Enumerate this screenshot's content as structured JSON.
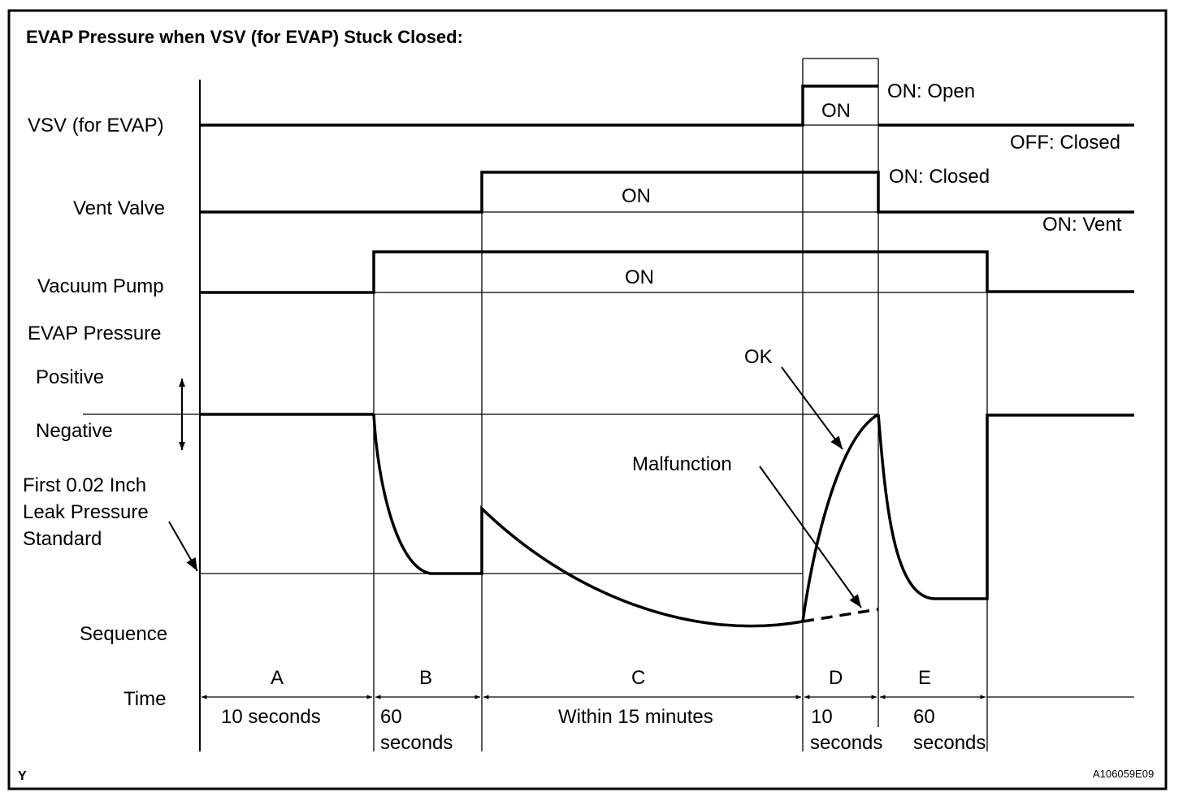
{
  "title": "EVAP Pressure when VSV (for EVAP) Stuck Closed:",
  "rows": {
    "vsv": "VSV (for EVAP)",
    "vent": "Vent Valve",
    "pump": "Vacuum Pump",
    "evap": "EVAP Pressure",
    "positive": "Positive",
    "negative": "Negative",
    "leak1": "First 0.02 Inch",
    "leak2": "Leak Pressure",
    "leak3": "Standard",
    "sequence": "Sequence",
    "time": "Time"
  },
  "states": {
    "vsv_on": "ON",
    "vsv_open": "ON: Open",
    "vsv_closed": "OFF: Closed",
    "vent_on": "ON",
    "vent_closed": "ON: Closed",
    "vent_vent": "ON: Vent",
    "pump_on": "ON"
  },
  "annotations": {
    "ok": "OK",
    "malfunction": "Malfunction"
  },
  "sequence": [
    {
      "label": "A",
      "time": [
        "10 seconds"
      ]
    },
    {
      "label": "B",
      "time": [
        "60",
        "seconds"
      ]
    },
    {
      "label": "C",
      "time": [
        "Within 15 minutes"
      ]
    },
    {
      "label": "D",
      "time": [
        "10",
        "seconds"
      ]
    },
    {
      "label": "E",
      "time": [
        "60",
        "seconds"
      ]
    }
  ],
  "footer": {
    "left": "Y",
    "code": "A106059E09"
  }
}
